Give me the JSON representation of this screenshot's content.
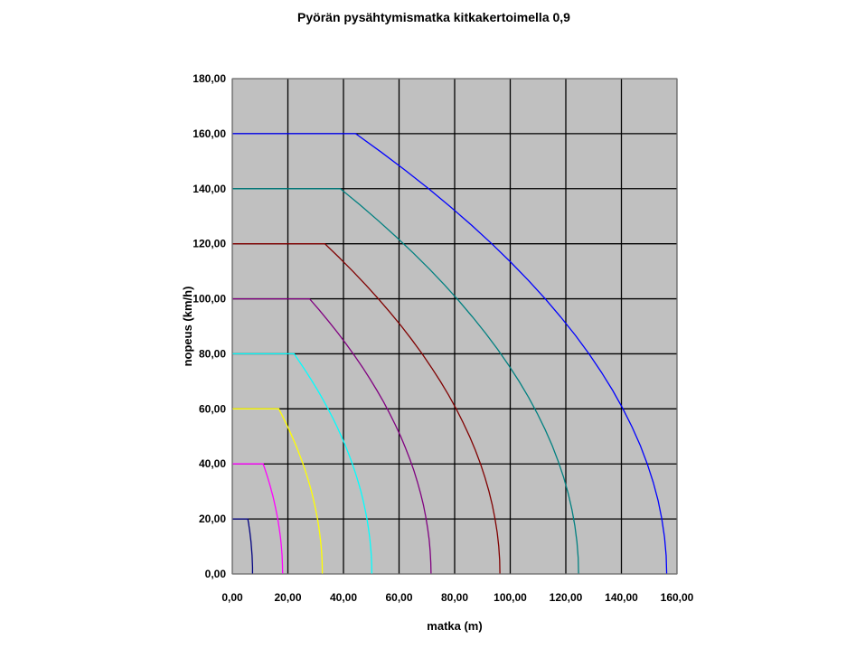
{
  "chart_data": {
    "type": "line",
    "title": "Pyörän pysähtymismatka kitkakertoimella 0,9",
    "xlabel": "matka (m)",
    "ylabel": "nopeus (km/h)",
    "xlim": [
      0,
      160
    ],
    "ylim": [
      0,
      180
    ],
    "grid": true,
    "legend": "none",
    "x_ticks": [
      "0,00",
      "20,00",
      "40,00",
      "60,00",
      "80,00",
      "100,00",
      "120,00",
      "140,00",
      "160,00"
    ],
    "y_ticks": [
      "0,00",
      "20,00",
      "40,00",
      "60,00",
      "80,00",
      "100,00",
      "120,00",
      "140,00",
      "160,00",
      "180,00"
    ],
    "plot_background": "#c0c0c0",
    "series": [
      {
        "color": "#000080",
        "reaction_end": 5.6,
        "v0": 20,
        "stop": 7.3
      },
      {
        "color": "#ff00ff",
        "reaction_end": 11.1,
        "v0": 40,
        "stop": 18.1
      },
      {
        "color": "#ffff00",
        "reaction_end": 16.7,
        "v0": 60,
        "stop": 32.4
      },
      {
        "color": "#00ffff",
        "reaction_end": 22.2,
        "v0": 80,
        "stop": 50.2
      },
      {
        "color": "#800080",
        "reaction_end": 27.8,
        "v0": 100,
        "stop": 71.5
      },
      {
        "color": "#800000",
        "reaction_end": 33.3,
        "v0": 120,
        "stop": 96.3
      },
      {
        "color": "#008080",
        "reaction_end": 38.9,
        "v0": 140,
        "stop": 124.6
      },
      {
        "color": "#0000ff",
        "reaction_end": 44.4,
        "v0": 160,
        "stop": 156.3
      }
    ]
  }
}
